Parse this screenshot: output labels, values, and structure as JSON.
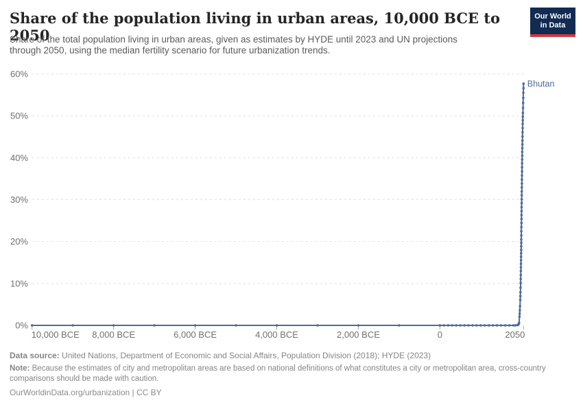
{
  "header": {
    "title": "Share of the population living in urban areas, 10,000 BCE to 2050",
    "subtitle_line1": "Share of the total population living in urban areas, given as estimates by HYDE until 2023 and UN projections",
    "subtitle_line2": "through 2050, using the median fertility scenario for future urbanization trends.",
    "logo": {
      "line1": "Our World",
      "line2": "in Data"
    }
  },
  "chart_data": {
    "type": "line",
    "title": "Share of the population living in urban areas, 10,000 BCE to 2050",
    "entity_label": "Bhutan",
    "unit": "%",
    "grid": true,
    "x_axis": {
      "range": [
        -10000,
        2050
      ],
      "ticks": [
        {
          "year": -10000,
          "label": "10,000 BCE",
          "align": "start"
        },
        {
          "year": -8000,
          "label": "8,000 BCE"
        },
        {
          "year": -6000,
          "label": "6,000 BCE"
        },
        {
          "year": -4000,
          "label": "4,000 BCE"
        },
        {
          "year": -2000,
          "label": "2,000 BCE"
        },
        {
          "year": 0,
          "label": "0"
        },
        {
          "year": 2050,
          "label": "2050",
          "align": "end"
        }
      ]
    },
    "y_axis": {
      "range": [
        0,
        60
      ],
      "ticks": [
        {
          "value": 0,
          "label": "0%"
        },
        {
          "value": 10,
          "label": "10%"
        },
        {
          "value": 20,
          "label": "20%"
        },
        {
          "value": 30,
          "label": "30%"
        },
        {
          "value": 40,
          "label": "40%"
        },
        {
          "value": 50,
          "label": "50%"
        },
        {
          "value": 60,
          "label": "60%"
        }
      ]
    },
    "series": [
      {
        "name": "Bhutan",
        "color": "#4c6a9c",
        "points": [
          [
            -10000,
            0
          ],
          [
            -9000,
            0
          ],
          [
            -8000,
            0
          ],
          [
            -7000,
            0
          ],
          [
            -6000,
            0
          ],
          [
            -5000,
            0
          ],
          [
            -4000,
            0
          ],
          [
            -3000,
            0
          ],
          [
            -2000,
            0
          ],
          [
            -1000,
            0
          ],
          [
            0,
            0
          ],
          [
            100,
            0
          ],
          [
            200,
            0
          ],
          [
            300,
            0
          ],
          [
            400,
            0
          ],
          [
            500,
            0
          ],
          [
            600,
            0
          ],
          [
            700,
            0
          ],
          [
            800,
            0
          ],
          [
            900,
            0
          ],
          [
            1000,
            0
          ],
          [
            1100,
            0
          ],
          [
            1200,
            0
          ],
          [
            1300,
            0
          ],
          [
            1400,
            0
          ],
          [
            1500,
            0
          ],
          [
            1600,
            0
          ],
          [
            1700,
            0
          ],
          [
            1800,
            0
          ],
          [
            1850,
            0
          ],
          [
            1900,
            0.1
          ],
          [
            1910,
            0.1
          ],
          [
            1920,
            0.2
          ],
          [
            1930,
            0.3
          ],
          [
            1940,
            0.6
          ],
          [
            1950,
            2.1
          ],
          [
            1955,
            2.8
          ],
          [
            1960,
            3.6
          ],
          [
            1965,
            4.6
          ],
          [
            1970,
            6.1
          ],
          [
            1975,
            7.9
          ],
          [
            1980,
            10.1
          ],
          [
            1985,
            13.0
          ],
          [
            1990,
            16.4
          ],
          [
            1995,
            20.5
          ],
          [
            2000,
            25.4
          ],
          [
            2005,
            30.1
          ],
          [
            2010,
            34.8
          ],
          [
            2015,
            38.7
          ],
          [
            2020,
            42.3
          ],
          [
            2023,
            44.1
          ],
          [
            2025,
            45.1
          ],
          [
            2030,
            48.1
          ],
          [
            2035,
            50.7
          ],
          [
            2040,
            53.1
          ],
          [
            2045,
            55.5
          ],
          [
            2050,
            57.7
          ]
        ]
      }
    ]
  },
  "footer": {
    "data_source_label": "Data source:",
    "data_source_text": "United Nations, Department of Economic and Social Affairs, Population Division (2018); HYDE (2023)",
    "note_label": "Note:",
    "note_text": "Because the estimates of city and metropolitan areas are based on national definitions of what constitutes a city or metropolitan area, cross-country comparisons should be made with caution.",
    "citation": "OurWorldinData.org/urbanization | CC BY"
  },
  "colors": {
    "series_line": "#4c6a9c",
    "gridline": "#dcdcdc",
    "axis_label": "#6f6f6f",
    "tick_mark": "#a3a3a3",
    "title_text": "#252525",
    "subtitle_text": "#5a5a5a",
    "footer_text": "#858585",
    "logo_background": "#122b52",
    "logo_accent_bar": "#cf3a3e"
  }
}
